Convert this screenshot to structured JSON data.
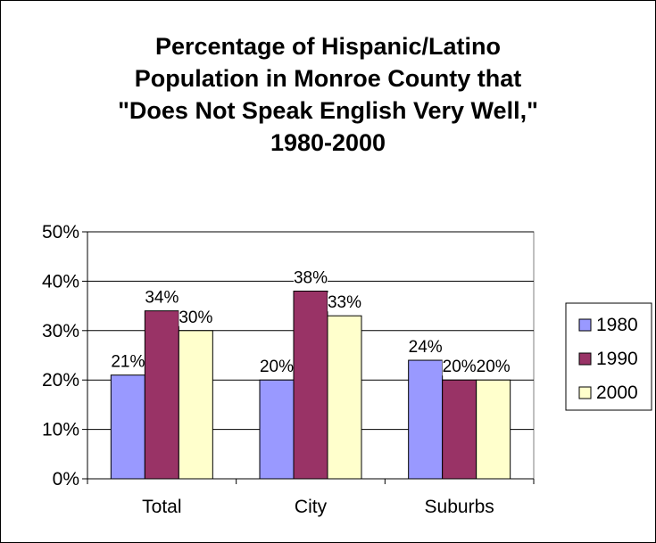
{
  "chart_data": {
    "type": "bar",
    "title_lines": [
      "Percentage of Hispanic/Latino",
      "Population in Monroe County that",
      "\"Does Not Speak English Very Well,\"",
      "1980-2000"
    ],
    "categories": [
      "Total",
      "City",
      "Suburbs"
    ],
    "series": [
      {
        "name": "1980",
        "values": [
          21,
          20,
          24
        ],
        "labels": [
          "21%",
          "20%",
          "24%"
        ],
        "color": "#9999FF"
      },
      {
        "name": "1990",
        "values": [
          34,
          38,
          20
        ],
        "labels": [
          "34%",
          "38%",
          "20%"
        ],
        "color": "#993366"
      },
      {
        "name": "2000",
        "values": [
          30,
          33,
          20
        ],
        "labels": [
          "30%",
          "33%",
          "20%"
        ],
        "color": "#FFFFCC"
      }
    ],
    "ylim": [
      0,
      50
    ],
    "yticks": [
      0,
      10,
      20,
      30,
      40,
      50
    ],
    "ytick_labels": [
      "0%",
      "10%",
      "20%",
      "30%",
      "40%",
      "50%"
    ],
    "grid": true,
    "legend_position": "right"
  }
}
